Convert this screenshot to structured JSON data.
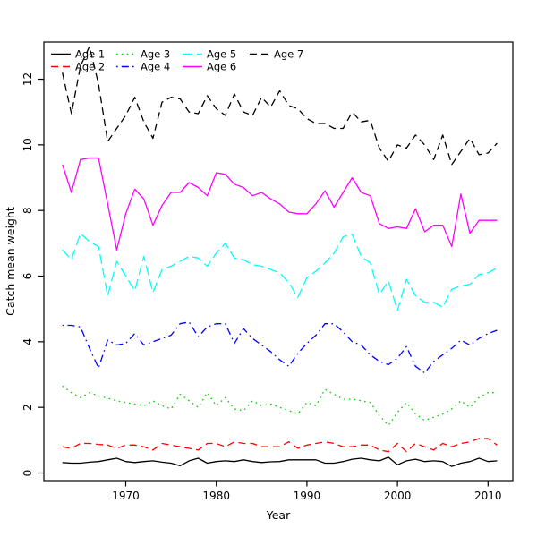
{
  "figure": {
    "background": "#ffffff"
  },
  "axes": {
    "xlabel": "Year",
    "ylabel": "Catch mean weight",
    "x_ticks": [
      1970,
      1980,
      1990,
      2000,
      2010
    ],
    "y_ticks": [
      0,
      2,
      4,
      6,
      8,
      10,
      12
    ]
  },
  "legend": {
    "position": "top-left",
    "ncol": 4,
    "labels": [
      "Age 1",
      "Age 2",
      "Age 3",
      "Age 4",
      "Age 5",
      "Age 6",
      "Age 7"
    ]
  },
  "chart_data": {
    "type": "line",
    "title": "",
    "xlabel": "Year",
    "ylabel": "Catch mean weight",
    "xlim": [
      1961.2,
      2013.8
    ],
    "ylim": [
      -0.55,
      13.15
    ],
    "grid": false,
    "legend_position": "top-left",
    "x": [
      1963,
      1964,
      1965,
      1966,
      1967,
      1968,
      1969,
      1970,
      1971,
      1972,
      1973,
      1974,
      1975,
      1976,
      1977,
      1978,
      1979,
      1980,
      1981,
      1982,
      1983,
      1984,
      1985,
      1986,
      1987,
      1988,
      1989,
      1990,
      1991,
      1992,
      1993,
      1994,
      1995,
      1996,
      1997,
      1998,
      1999,
      2000,
      2001,
      2002,
      2003,
      2004,
      2005,
      2006,
      2007,
      2008,
      2009,
      2010,
      2011
    ],
    "series": [
      {
        "name": "Age 1",
        "color": "#000000",
        "linetype": "solid",
        "values": [
          0.32,
          0.3,
          0.3,
          0.33,
          0.35,
          0.4,
          0.45,
          0.35,
          0.32,
          0.35,
          0.37,
          0.33,
          0.3,
          0.22,
          0.37,
          0.45,
          0.3,
          0.35,
          0.37,
          0.35,
          0.4,
          0.35,
          0.32,
          0.34,
          0.35,
          0.4,
          0.4,
          0.4,
          0.4,
          0.3,
          0.3,
          0.35,
          0.42,
          0.45,
          0.4,
          0.37,
          0.48,
          0.25,
          0.37,
          0.42,
          0.35,
          0.37,
          0.35,
          0.2,
          0.3,
          0.35,
          0.45,
          0.35,
          0.37
        ]
      },
      {
        "name": "Age 2",
        "color": "#FF0000",
        "linetype": "dashed",
        "values": [
          0.8,
          0.75,
          0.9,
          0.9,
          0.87,
          0.85,
          0.75,
          0.85,
          0.85,
          0.8,
          0.7,
          0.9,
          0.85,
          0.8,
          0.75,
          0.7,
          0.9,
          0.9,
          0.8,
          0.95,
          0.9,
          0.9,
          0.8,
          0.8,
          0.8,
          0.95,
          0.75,
          0.85,
          0.9,
          0.95,
          0.9,
          0.8,
          0.8,
          0.85,
          0.85,
          0.7,
          0.65,
          0.9,
          0.65,
          0.9,
          0.8,
          0.7,
          0.9,
          0.8,
          0.9,
          0.95,
          1.05,
          1.05,
          0.85
        ]
      },
      {
        "name": "Age 3",
        "color": "#00CD00",
        "linetype": "dotted",
        "values": [
          2.65,
          2.45,
          2.3,
          2.45,
          2.35,
          2.28,
          2.2,
          2.15,
          2.1,
          2.05,
          2.2,
          2.05,
          1.95,
          2.4,
          2.2,
          2.0,
          2.45,
          2.05,
          2.3,
          1.95,
          1.9,
          2.2,
          2.05,
          2.1,
          2.0,
          1.9,
          1.8,
          2.15,
          2.05,
          2.55,
          2.4,
          2.25,
          2.25,
          2.2,
          2.15,
          1.75,
          1.45,
          1.85,
          2.15,
          1.8,
          1.6,
          1.7,
          1.8,
          1.95,
          2.2,
          2.0,
          2.3,
          2.45,
          2.45
        ]
      },
      {
        "name": "Age 4",
        "color": "#0000FF",
        "linetype": "dotdash",
        "values": [
          4.5,
          4.5,
          4.45,
          3.8,
          3.2,
          4.05,
          3.9,
          3.95,
          4.25,
          3.9,
          4.0,
          4.1,
          4.2,
          4.55,
          4.6,
          4.15,
          4.45,
          4.55,
          4.55,
          3.95,
          4.4,
          4.1,
          3.9,
          3.7,
          3.45,
          3.25,
          3.65,
          3.95,
          4.2,
          4.55,
          4.55,
          4.3,
          4.0,
          3.9,
          3.6,
          3.4,
          3.3,
          3.5,
          3.85,
          3.25,
          3.05,
          3.4,
          3.6,
          3.8,
          4.05,
          3.9,
          4.1,
          4.25,
          4.35
        ]
      },
      {
        "name": "Age 5",
        "color": "#00FFFF",
        "linetype": "longdash",
        "values": [
          6.8,
          6.5,
          7.3,
          7.05,
          6.9,
          5.4,
          6.45,
          6.0,
          5.55,
          6.6,
          5.5,
          6.2,
          6.3,
          6.45,
          6.6,
          6.55,
          6.3,
          6.7,
          7.0,
          6.55,
          6.5,
          6.35,
          6.3,
          6.2,
          6.1,
          5.8,
          5.35,
          5.95,
          6.15,
          6.4,
          6.7,
          7.2,
          7.28,
          6.6,
          6.4,
          5.45,
          5.85,
          4.95,
          5.9,
          5.4,
          5.2,
          5.2,
          5.05,
          5.6,
          5.7,
          5.75,
          6.05,
          6.1,
          6.25
        ]
      },
      {
        "name": "Age 6",
        "color": "#FF00FF",
        "linetype": "solid",
        "values": [
          9.4,
          8.55,
          9.55,
          9.6,
          9.6,
          8.2,
          6.8,
          7.9,
          8.65,
          8.35,
          7.55,
          8.15,
          8.55,
          8.55,
          8.85,
          8.7,
          8.45,
          9.15,
          9.1,
          8.8,
          8.7,
          8.45,
          8.55,
          8.35,
          8.2,
          7.95,
          7.9,
          7.9,
          8.2,
          8.6,
          8.1,
          8.55,
          9.0,
          8.55,
          8.45,
          7.6,
          7.45,
          7.5,
          7.45,
          8.05,
          7.35,
          7.55,
          7.55,
          6.9,
          8.5,
          7.3,
          7.7,
          7.7,
          7.7
        ]
      },
      {
        "name": "Age 7",
        "color": "#000000",
        "linetype": "dashed",
        "values": [
          12.2,
          10.95,
          12.4,
          13.0,
          11.85,
          10.1,
          10.5,
          10.9,
          11.45,
          10.7,
          10.2,
          11.3,
          11.45,
          11.4,
          11.0,
          10.95,
          11.5,
          11.1,
          10.9,
          11.55,
          11.0,
          10.9,
          11.45,
          11.15,
          11.65,
          11.2,
          11.1,
          10.8,
          10.65,
          10.65,
          10.5,
          10.5,
          11.0,
          10.7,
          10.75,
          9.9,
          9.5,
          10.0,
          9.9,
          10.3,
          10.0,
          9.55,
          10.3,
          9.4,
          9.8,
          10.2,
          9.7,
          9.75,
          10.05
        ]
      }
    ]
  }
}
